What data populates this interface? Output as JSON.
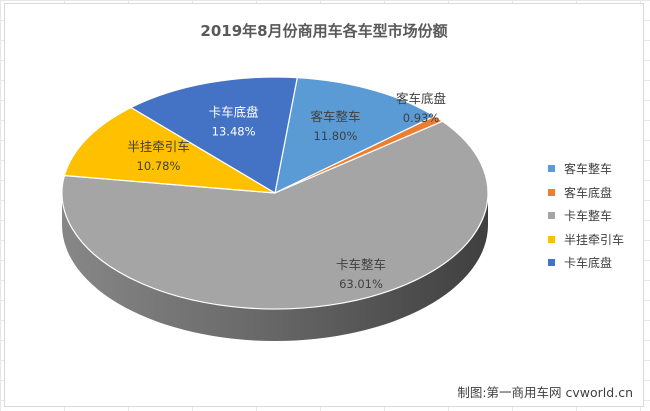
{
  "chart_data": {
    "type": "pie",
    "title": "2019年8月份商用车各车型市场份额",
    "categories": [
      "客车整车",
      "客车底盘",
      "卡车整车",
      "半挂牵引车",
      "卡车底盘"
    ],
    "values": [
      11.8,
      0.93,
      63.01,
      10.78,
      13.48
    ],
    "value_labels": [
      "11.80%",
      "0.93%",
      "63.01%",
      "10.78%",
      "13.48%"
    ],
    "colors": [
      "#5b9bd5",
      "#ed7d31",
      "#a5a5a5",
      "#ffc000",
      "#4472c4"
    ],
    "style": "3d-pie",
    "legend_position": "right"
  },
  "credit": "制图:第一商用车网 cvworld.cn"
}
